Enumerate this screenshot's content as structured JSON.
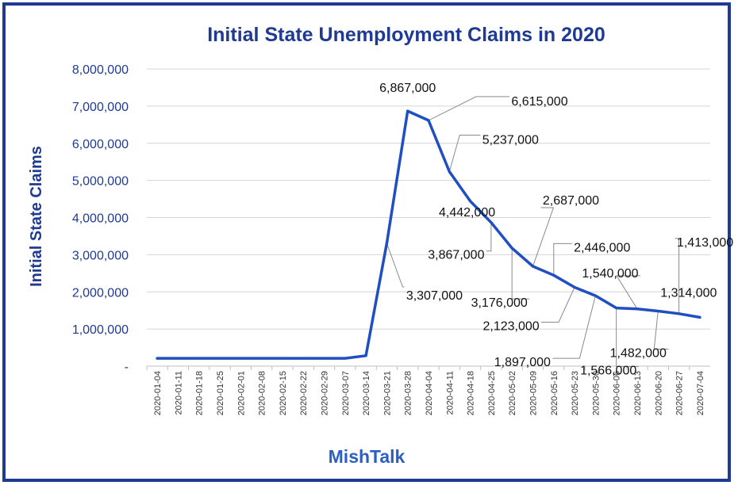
{
  "chart_data": {
    "type": "line",
    "title": "Initial State Unemployment Claims in 2020",
    "ylabel": "Initial  State Claims",
    "xlabel": "",
    "brand": "MishTalk",
    "ylim": [
      0,
      8000000
    ],
    "y_ticks": [
      "-",
      "1,000,000",
      "2,000,000",
      "3,000,000",
      "4,000,000",
      "5,000,000",
      "6,000,000",
      "7,000,000",
      "8,000,000"
    ],
    "grid": true,
    "legend": "none",
    "line_color": "#1f4fc1",
    "x": [
      "2020-01-04",
      "2020-01-11",
      "2020-01-18",
      "2020-01-25",
      "2020-02-01",
      "2020-02-08",
      "2020-02-15",
      "2020-02-22",
      "2020-02-29",
      "2020-03-07",
      "2020-03-14",
      "2020-03-21",
      "2020-03-28",
      "2020-04-04",
      "2020-04-11",
      "2020-04-18",
      "2020-04-25",
      "2020-05-02",
      "2020-05-09",
      "2020-05-16",
      "2020-05-23",
      "2020-05-30",
      "2020-06-06",
      "2020-06-13",
      "2020-06-20",
      "2020-06-27",
      "2020-07-04"
    ],
    "values": [
      211000,
      211000,
      211000,
      211000,
      211000,
      211000,
      211000,
      211000,
      211000,
      211000,
      282000,
      3307000,
      6867000,
      6615000,
      5237000,
      4442000,
      3867000,
      3176000,
      2687000,
      2446000,
      2123000,
      1897000,
      1566000,
      1540000,
      1482000,
      1413000,
      1314000
    ],
    "data_labels": [
      {
        "index": 11,
        "text": "3,307,000"
      },
      {
        "index": 12,
        "text": "6,867,000"
      },
      {
        "index": 13,
        "text": "6,615,000"
      },
      {
        "index": 14,
        "text": "5,237,000"
      },
      {
        "index": 15,
        "text": "4,442,000"
      },
      {
        "index": 16,
        "text": "3,867,000"
      },
      {
        "index": 17,
        "text": "3,176,000"
      },
      {
        "index": 18,
        "text": "2,687,000"
      },
      {
        "index": 19,
        "text": "2,446,000"
      },
      {
        "index": 20,
        "text": "2,123,000"
      },
      {
        "index": 21,
        "text": "1,897,000"
      },
      {
        "index": 22,
        "text": "1,566,000"
      },
      {
        "index": 23,
        "text": "1,540,000"
      },
      {
        "index": 24,
        "text": "1,482,000"
      },
      {
        "index": 25,
        "text": "1,413,000"
      },
      {
        "index": 26,
        "text": "1,314,000"
      }
    ]
  }
}
